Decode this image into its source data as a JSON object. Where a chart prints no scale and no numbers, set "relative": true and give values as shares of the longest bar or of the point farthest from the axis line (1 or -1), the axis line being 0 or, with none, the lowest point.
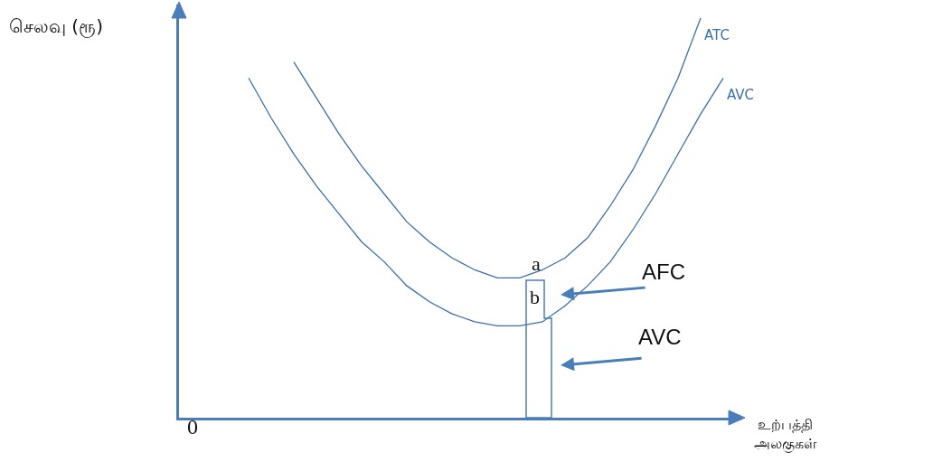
{
  "chart_data": {
    "type": "line",
    "relative": true,
    "legend": false,
    "marker": "none",
    "line_style": "solid",
    "xlabel": "உற்பத்தி அலகுகள்",
    "ylabel": "செலவு (ரூ)",
    "categories": [
      null,
      null,
      null,
      null,
      null,
      null,
      null,
      null,
      null,
      null,
      null,
      null,
      null,
      null,
      null,
      null,
      null,
      null,
      null,
      null,
      null,
      null,
      null,
      null,
      null,
      null
    ],
    "series": [
      {
        "name": "ATC",
        "color": "#3a6fb0",
        "values": [
          null,
          null,
          null,
          null,
          null,
          0.89,
          0.8,
          0.71,
          0.63,
          0.56,
          0.49,
          0.44,
          0.4,
          0.37,
          0.35,
          0.35,
          0.37,
          0.4,
          0.45,
          0.53,
          0.62,
          0.73,
          0.85,
          1.0,
          null,
          null
        ]
      },
      {
        "name": "AVC",
        "color": "#3a6fb0",
        "values": [
          null,
          null,
          null,
          0.85,
          0.75,
          0.66,
          0.58,
          0.51,
          0.44,
          0.39,
          0.33,
          0.29,
          0.26,
          0.24,
          0.23,
          0.23,
          0.24,
          0.28,
          0.33,
          0.39,
          0.47,
          0.56,
          0.66,
          0.76,
          0.85,
          null
        ]
      }
    ],
    "annotations": [
      "0",
      "a",
      "b",
      "AFC",
      "AVC"
    ]
  }
}
